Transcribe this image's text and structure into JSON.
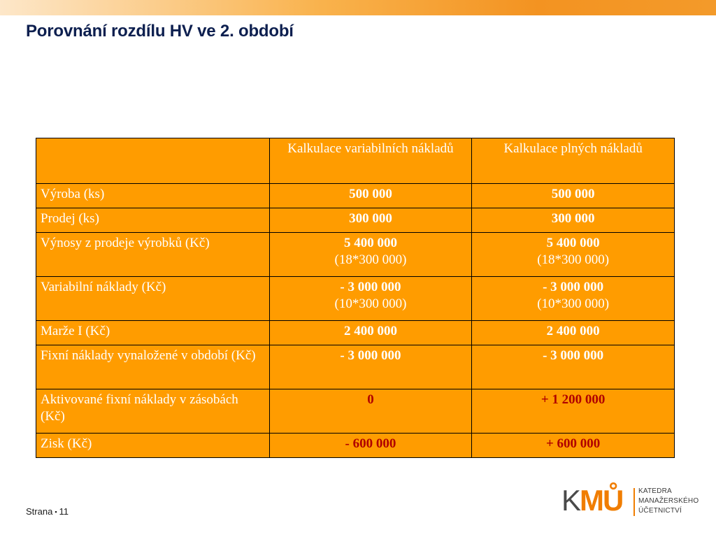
{
  "slide": {
    "title": "Porovnání rozdílu HV ve 2. období"
  },
  "table": {
    "headers": [
      "",
      "Kalkulace variabilních nákladů",
      "Kalkulace plných nákladů"
    ],
    "rows": [
      {
        "label": "Výroba (ks)",
        "variable": [
          "500 000"
        ],
        "full": [
          "500 000"
        ]
      },
      {
        "label": "Prodej (ks)",
        "variable": [
          "300 000"
        ],
        "full": [
          "300 000"
        ]
      },
      {
        "label": "Výnosy z prodeje výrobků (Kč)",
        "variable": [
          "5 400 000",
          "(18*300 000)"
        ],
        "full": [
          "5 400 000",
          "(18*300 000)"
        ]
      },
      {
        "label": "Variabilní náklady (Kč)",
        "variable": [
          "- 3 000 000",
          "(10*300 000)"
        ],
        "full": [
          "- 3 000 000",
          "(10*300 000)"
        ]
      },
      {
        "label": "Marže I (Kč)",
        "variable": [
          "2 400 000"
        ],
        "full": [
          "2 400 000"
        ]
      },
      {
        "label": "Fixní náklady vynaložené v období (Kč)",
        "variable": [
          "- 3 000 000"
        ],
        "full": [
          "- 3 000 000"
        ]
      },
      {
        "label": "Aktivované fixní náklady v zásobách (Kč)",
        "variable": [
          "0"
        ],
        "full": [
          "+ 1 200 000"
        ]
      },
      {
        "label": "Zisk (Kč)",
        "variable": [
          "- 600 000"
        ],
        "full": [
          "+ 600 000"
        ]
      }
    ]
  },
  "colors": {
    "table_fill": "#ff9c00",
    "highlight_text": "#b00000",
    "title_text": "#0d1f4f",
    "logo_accent": "#f07d00"
  },
  "footer": {
    "label": "Strana",
    "separator": "▪",
    "page_number": "11"
  },
  "logo": {
    "letter_k": "K",
    "letters_mu": "MŮ",
    "lines": [
      "KATEDRA",
      "MANAŽERSKÉHO",
      "ÚČETNICTVÍ"
    ]
  }
}
